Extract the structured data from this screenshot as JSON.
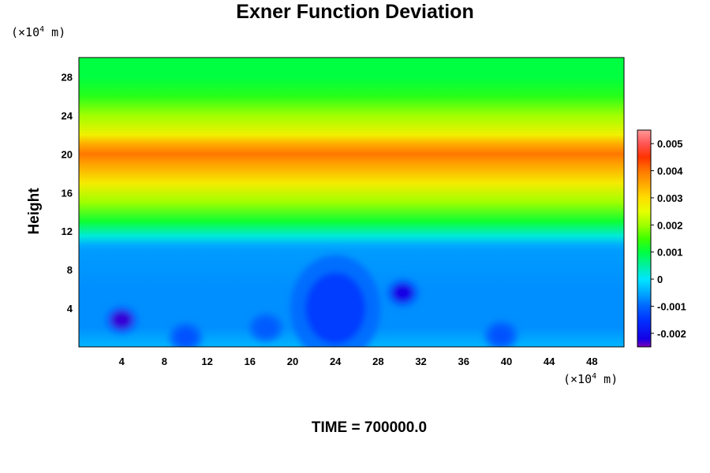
{
  "chart_data": {
    "type": "heatmap",
    "title": "Exner Function Deviation",
    "ylabel": "Height",
    "xlabel": "",
    "x_unit": {
      "prefix": "(×10",
      "exp": "4",
      "suffix": " m)"
    },
    "y_unit": {
      "prefix": "(×10",
      "exp": "4",
      "suffix": " m)"
    },
    "xlim": [
      0,
      51
    ],
    "ylim": [
      0,
      30
    ],
    "x_ticks": [
      4,
      8,
      12,
      16,
      20,
      24,
      28,
      32,
      36,
      40,
      44,
      48
    ],
    "y_ticks": [
      4,
      8,
      12,
      16,
      20,
      24,
      28
    ],
    "colorbar": {
      "range": [
        -0.0025,
        0.0055
      ],
      "ticks": [
        "0.005",
        "0.004",
        "0.003",
        "0.002",
        "0.001",
        "0",
        "-0.001",
        "-0.002"
      ],
      "tick_values": [
        0.005,
        0.004,
        0.003,
        0.002,
        0.001,
        0,
        -0.001,
        -0.002
      ]
    },
    "profile": {
      "height": [
        0,
        2,
        6,
        10,
        10.5,
        11.5,
        13,
        15,
        17,
        19,
        20,
        21,
        22,
        24,
        26,
        28,
        30
      ],
      "value": [
        -0.0004,
        -0.0007,
        -0.0007,
        -0.0006,
        -0.0005,
        0.0002,
        0.0011,
        0.002,
        0.0028,
        0.0036,
        0.004,
        0.0035,
        0.0027,
        0.002,
        0.0013,
        0.001,
        0.001
      ]
    },
    "anomalies": [
      {
        "x": 4,
        "y": 2.8,
        "value": -0.0023
      },
      {
        "x": 30.3,
        "y": 5.6,
        "value": -0.0022
      },
      {
        "x": 24,
        "y": 4,
        "value": -0.0014
      },
      {
        "x": 10,
        "y": 1,
        "value": -0.0012
      },
      {
        "x": 39.5,
        "y": 1.2,
        "value": -0.0012
      },
      {
        "x": 17.5,
        "y": 2,
        "value": -0.0011
      }
    ],
    "time_label": "TIME = 700000.0"
  }
}
